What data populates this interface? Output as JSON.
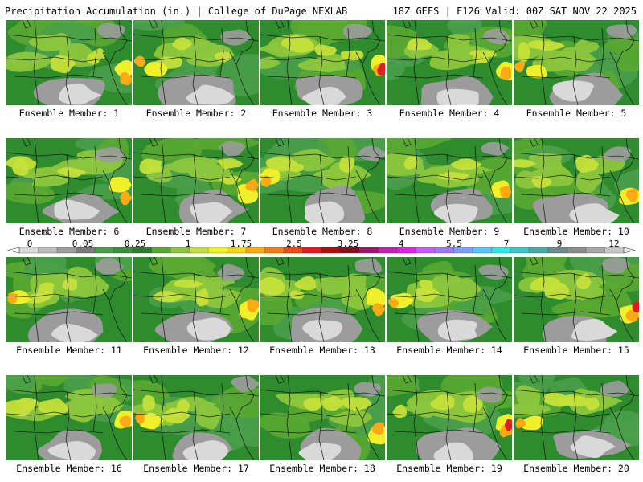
{
  "header": {
    "left": "Precipitation Accumulation (in.) | College of DuPage NEXLAB",
    "right": "18Z GEFS | F126 Valid: 00Z SAT NOV 22 2025"
  },
  "panels": [
    {
      "label": "Ensemble Member: 1"
    },
    {
      "label": "Ensemble Member: 2"
    },
    {
      "label": "Ensemble Member: 3"
    },
    {
      "label": "Ensemble Member: 4"
    },
    {
      "label": "Ensemble Member: 5"
    },
    {
      "label": "Ensemble Member: 6"
    },
    {
      "label": "Ensemble Member: 7"
    },
    {
      "label": "Ensemble Member: 8"
    },
    {
      "label": "Ensemble Member: 9"
    },
    {
      "label": "Ensemble Member: 10"
    },
    {
      "label": "Ensemble Member: 11"
    },
    {
      "label": "Ensemble Member: 12"
    },
    {
      "label": "Ensemble Member: 13"
    },
    {
      "label": "Ensemble Member: 14"
    },
    {
      "label": "Ensemble Member: 15"
    },
    {
      "label": "Ensemble Member: 16"
    },
    {
      "label": "Ensemble Member: 17"
    },
    {
      "label": "Ensemble Member: 18"
    },
    {
      "label": "Ensemble Member: 19"
    },
    {
      "label": "Ensemble Member: 20"
    }
  ],
  "colorbar": {
    "labels": [
      "0",
      "0.05",
      "0.25",
      "1",
      "1.75",
      "2.5",
      "3.25",
      "4",
      "5.5",
      "7",
      "9",
      "12"
    ],
    "colors": [
      "#d9d9d9",
      "#bdbdbd",
      "#9c9c9c",
      "#7a7a7a",
      "#4a9e4a",
      "#3c8f3c",
      "#2e7d2e",
      "#5aa832",
      "#8cc63c",
      "#c6e03a",
      "#f0f02a",
      "#ffd21e",
      "#ffaa14",
      "#ff7a0a",
      "#f04a0a",
      "#dc1e1e",
      "#b40a0a",
      "#8c0a1e",
      "#a0146e",
      "#c81eb4",
      "#e61ee6",
      "#c85aff",
      "#a078ff",
      "#78a0ff",
      "#50c8ff",
      "#32e6e6",
      "#32c8c8",
      "#46aaaa",
      "#6e8c8c",
      "#8c8c8c",
      "#a8a8a8",
      "#c8c8c8"
    ]
  }
}
